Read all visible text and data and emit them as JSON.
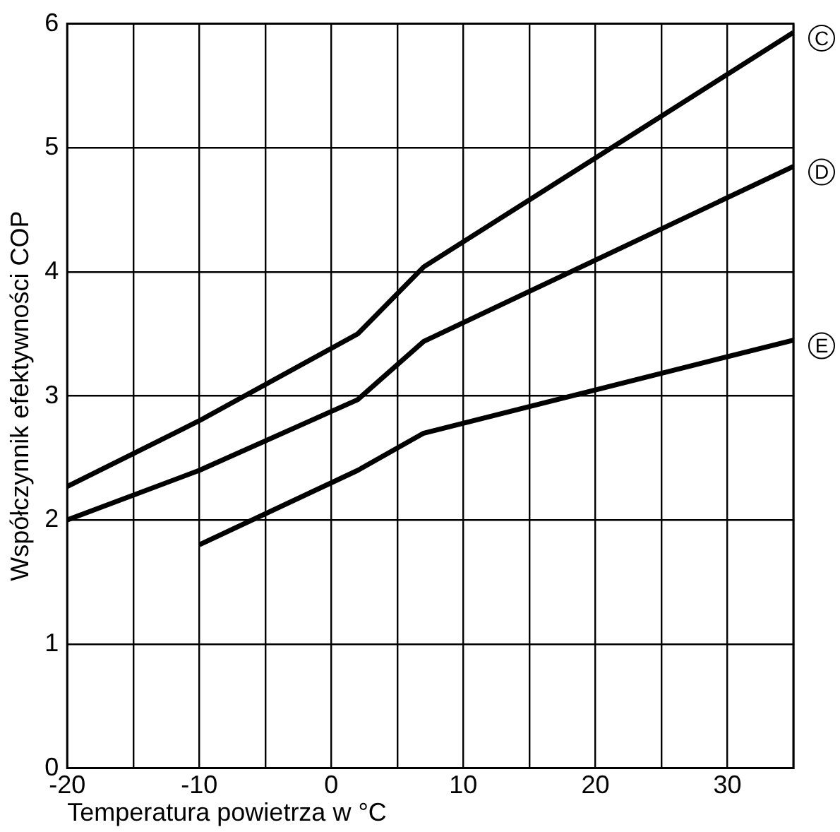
{
  "chart_data": {
    "type": "line",
    "xlabel": "Temperatura powietrza w °C",
    "ylabel": "Współczynnik efektywności COP",
    "xlim": [
      -20,
      35
    ],
    "xticks": [
      -20,
      {
        "value": -15,
        "label": null
      },
      -10,
      {
        "value": -5,
        "label": null
      },
      0,
      {
        "value": 5,
        "label": null
      },
      10,
      {
        "value": 15,
        "label": null
      },
      20,
      {
        "value": 25,
        "label": null
      },
      30,
      {
        "value": 35,
        "label": null
      }
    ],
    "ylim": [
      0,
      6
    ],
    "yticks": [
      0,
      1,
      2,
      3,
      4,
      5,
      6
    ],
    "grid": true,
    "legend": false,
    "marker": "none",
    "line_style": "solid",
    "series": [
      {
        "name": "C",
        "color": "#000000",
        "x": [
          -20,
          -10,
          2,
          7,
          35
        ],
        "values": [
          2.27,
          2.8,
          3.5,
          4.04,
          5.93
        ]
      },
      {
        "name": "D",
        "color": "#000000",
        "x": [
          -20,
          -10,
          2,
          7,
          35
        ],
        "values": [
          2.0,
          2.4,
          2.97,
          3.44,
          4.85
        ]
      },
      {
        "name": "E",
        "color": "#000000",
        "x": [
          -10,
          2,
          7,
          35
        ],
        "values": [
          1.8,
          2.4,
          2.7,
          3.45
        ]
      }
    ]
  }
}
